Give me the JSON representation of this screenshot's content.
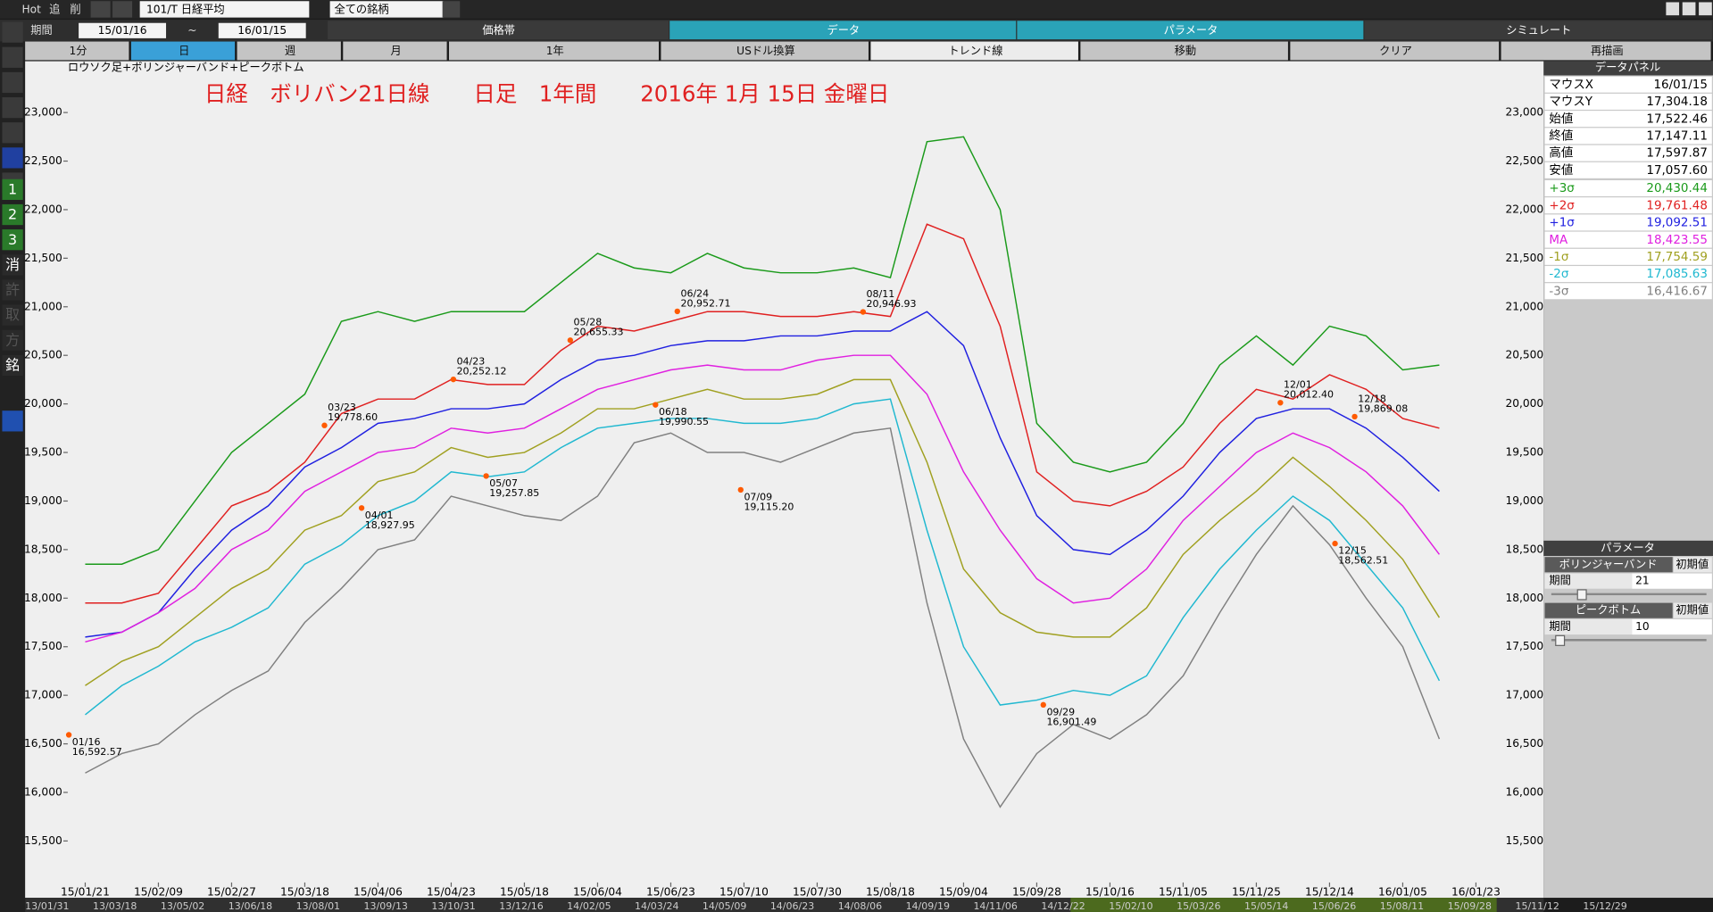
{
  "toolbar": {
    "hot": "Hot",
    "add": "追",
    "del": "削",
    "symbol": "101/T 日経平均",
    "filter": "全ての銘柄"
  },
  "range": {
    "label": "期間",
    "from": "15/01/16",
    "sep": "~",
    "to": "16/01/15"
  },
  "tabs": [
    "価格帯",
    "データ",
    "パラメータ",
    "シミュレート"
  ],
  "periods": [
    "1分",
    "日",
    "週",
    "月",
    "1年",
    "USドル換算",
    "トレンド線",
    "移動",
    "クリア",
    "再描画"
  ],
  "sidebar": [
    "1",
    "2",
    "3",
    "消",
    "許",
    "取",
    "方",
    "銘"
  ],
  "chart_data": {
    "type": "line",
    "subtitle": "ロウソク足+ボリンジャーバンド+ピークボトム",
    "title": "日経　ボリバン21日線　　日足　1年間　　2016年 1月 15日 金曜日",
    "categories": [
      "15/01/21",
      null,
      "15/02/09",
      null,
      "15/02/27",
      null,
      "15/03/18",
      null,
      "15/04/06",
      null,
      "15/04/23",
      null,
      "15/05/18",
      null,
      "15/06/04",
      null,
      "15/06/23",
      null,
      "15/07/10",
      null,
      "15/07/30",
      null,
      "15/08/18",
      null,
      "15/09/04",
      null,
      "15/09/28",
      null,
      "15/10/16",
      null,
      "15/11/05",
      null,
      "15/11/25",
      null,
      "15/12/14",
      null,
      "16/01/05",
      null,
      "16/01/23"
    ],
    "series": [
      {
        "name": "+3σ",
        "color": "#1a9a1a",
        "values": [
          18350,
          18350,
          18500,
          19000,
          19500,
          19800,
          20100,
          20850,
          20950,
          20850,
          20950,
          20950,
          20950,
          21250,
          21550,
          21400,
          21350,
          21550,
          21400,
          21350,
          21350,
          21400,
          21300,
          22700,
          22750,
          22000,
          19800,
          19400,
          19300,
          19400,
          19800,
          20400,
          20700,
          20400,
          20800,
          20700,
          20350,
          20400,
          null
        ]
      },
      {
        "name": "+2σ",
        "color": "#e02020",
        "values": [
          17950,
          17950,
          18050,
          18500,
          18950,
          19100,
          19400,
          19900,
          20050,
          20050,
          20250,
          20200,
          20200,
          20550,
          20800,
          20750,
          20850,
          20950,
          20950,
          20900,
          20900,
          20950,
          20900,
          21850,
          21700,
          20800,
          19300,
          19000,
          18950,
          19100,
          19350,
          19800,
          20150,
          20050,
          20300,
          20150,
          19850,
          19750,
          null
        ]
      },
      {
        "name": "+1σ",
        "color": "#2020e0",
        "values": [
          17600,
          17650,
          17850,
          18300,
          18700,
          18950,
          19350,
          19550,
          19800,
          19850,
          19950,
          19950,
          20000,
          20250,
          20450,
          20500,
          20600,
          20650,
          20650,
          20700,
          20700,
          20750,
          20750,
          20950,
          20600,
          19650,
          18850,
          18500,
          18450,
          18700,
          19050,
          19500,
          19850,
          19950,
          19950,
          19750,
          19450,
          19100,
          null
        ]
      },
      {
        "name": "MA",
        "color": "#e020e0",
        "values": [
          17550,
          17650,
          17850,
          18100,
          18500,
          18700,
          19100,
          19300,
          19500,
          19550,
          19750,
          19700,
          19750,
          19950,
          20150,
          20250,
          20350,
          20400,
          20350,
          20350,
          20450,
          20500,
          20500,
          20100,
          19300,
          18700,
          18200,
          17950,
          18000,
          18300,
          18800,
          19150,
          19500,
          19700,
          19550,
          19300,
          18950,
          18450,
          null
        ]
      },
      {
        "name": "-1σ",
        "color": "#a0a020",
        "values": [
          17100,
          17350,
          17500,
          17800,
          18100,
          18300,
          18700,
          18850,
          19200,
          19300,
          19550,
          19450,
          19500,
          19700,
          19950,
          19950,
          20050,
          20150,
          20050,
          20050,
          20100,
          20250,
          20250,
          19400,
          18300,
          17850,
          17650,
          17600,
          17600,
          17900,
          18450,
          18800,
          19100,
          19450,
          19150,
          18800,
          18400,
          17800,
          null
        ]
      },
      {
        "name": "-2σ",
        "color": "#20b8d0",
        "values": [
          16800,
          17100,
          17300,
          17550,
          17700,
          17900,
          18350,
          18550,
          18850,
          19000,
          19300,
          19250,
          19300,
          19550,
          19750,
          19800,
          19850,
          19850,
          19800,
          19800,
          19850,
          20000,
          20050,
          18700,
          17500,
          16900,
          16950,
          17050,
          17000,
          17200,
          17800,
          18300,
          18700,
          19050,
          18800,
          18350,
          17900,
          17150,
          null
        ]
      },
      {
        "name": "-3σ",
        "color": "#808080",
        "values": [
          16200,
          16400,
          16500,
          16800,
          17050,
          17250,
          17750,
          18100,
          18500,
          18600,
          19050,
          18950,
          18850,
          18800,
          19050,
          19600,
          19700,
          19500,
          19500,
          19400,
          19550,
          19700,
          19750,
          17950,
          16550,
          15850,
          16400,
          16700,
          16550,
          16800,
          17200,
          17850,
          18450,
          18950,
          18550,
          18000,
          17500,
          16550,
          null
        ]
      }
    ],
    "ylim": [
      15500,
      23000
    ],
    "yticks": [
      {
        "value": 15500,
        "label": "15,500"
      },
      {
        "value": 16000,
        "label": "16,000"
      },
      {
        "value": 16500,
        "label": "16,500"
      },
      {
        "value": 17000,
        "label": "17,000"
      },
      {
        "value": 17500,
        "label": "17,500"
      },
      {
        "value": 18000,
        "label": "18,000"
      },
      {
        "value": 18500,
        "label": "18,500"
      },
      {
        "value": 19000,
        "label": "19,000"
      },
      {
        "value": 19500,
        "label": "19,500"
      },
      {
        "value": 20000,
        "label": "20,000"
      },
      {
        "value": 20500,
        "label": "20,500"
      },
      {
        "value": 21000,
        "label": "21,000"
      },
      {
        "value": 21500,
        "label": "21,500"
      },
      {
        "value": 22000,
        "label": "22,000"
      },
      {
        "value": 22500,
        "label": "22,500"
      },
      {
        "value": 23000,
        "label": "23,000"
      }
    ],
    "annotations": [
      {
        "date": "01/16",
        "label": "16,592.57",
        "value": 16592.57
      },
      {
        "date": "03/23",
        "label": "19,778.60",
        "value": 19778.6
      },
      {
        "date": "04/01",
        "label": "18,927.95",
        "value": 18927.95
      },
      {
        "date": "04/23",
        "label": "20,252.12",
        "value": 20252.12
      },
      {
        "date": "05/07",
        "label": "19,257.85",
        "value": 19257.85
      },
      {
        "date": "05/28",
        "label": "20,655.33",
        "value": 20655.33
      },
      {
        "date": "06/24",
        "label": "20,952.71",
        "value": 20952.71
      },
      {
        "date": "06/18",
        "label": "19,990.55",
        "value": 19990.55
      },
      {
        "date": "07/09",
        "label": "19,115.20",
        "value": 19115.2
      },
      {
        "date": "08/11",
        "label": "20,946.93",
        "value": 20946.93
      },
      {
        "date": "09/29",
        "label": "16,901.49",
        "value": 16901.49
      },
      {
        "date": "12/01",
        "label": "20,012.40",
        "value": 20012.4
      },
      {
        "date": "12/18",
        "label": "19,869.08",
        "value": 19869.08
      },
      {
        "date": "12/15",
        "label": "18,562.51",
        "value": 18562.51
      }
    ]
  },
  "navigator": [
    "13/01/31",
    "13/03/18",
    "13/05/02",
    "13/06/18",
    "13/08/01",
    "13/09/13",
    "13/10/31",
    "13/12/16",
    "14/02/05",
    "14/03/24",
    "14/05/09",
    "14/06/23",
    "14/08/06",
    "14/09/19",
    "14/11/06",
    "14/12/22",
    "15/02/10",
    "15/03/26",
    "15/05/14",
    "15/06/26",
    "15/08/11",
    "15/09/28",
    "15/11/12",
    "15/12/29"
  ],
  "data_panel": {
    "title": "データパネル",
    "rows": [
      [
        "マウスX",
        "16/01/15"
      ],
      [
        "マウスY",
        "17,304.18"
      ],
      [
        "始値",
        "17,522.46"
      ],
      [
        "終値",
        "17,147.11"
      ],
      [
        "高値",
        "17,597.87"
      ],
      [
        "安値",
        "17,057.60"
      ]
    ],
    "band_values": [
      "20,430.44",
      "19,761.48",
      "19,092.51",
      "18,423.55",
      "17,754.59",
      "17,085.63",
      "16,416.67"
    ]
  },
  "parameters": {
    "title": "パラメータ",
    "groups": [
      {
        "name": "ボリンジャーバンド",
        "reset": "初期値",
        "label": "期間",
        "value": "21"
      },
      {
        "name": "ピークボトム",
        "reset": "初期値",
        "label": "期間",
        "value": "10"
      }
    ]
  }
}
